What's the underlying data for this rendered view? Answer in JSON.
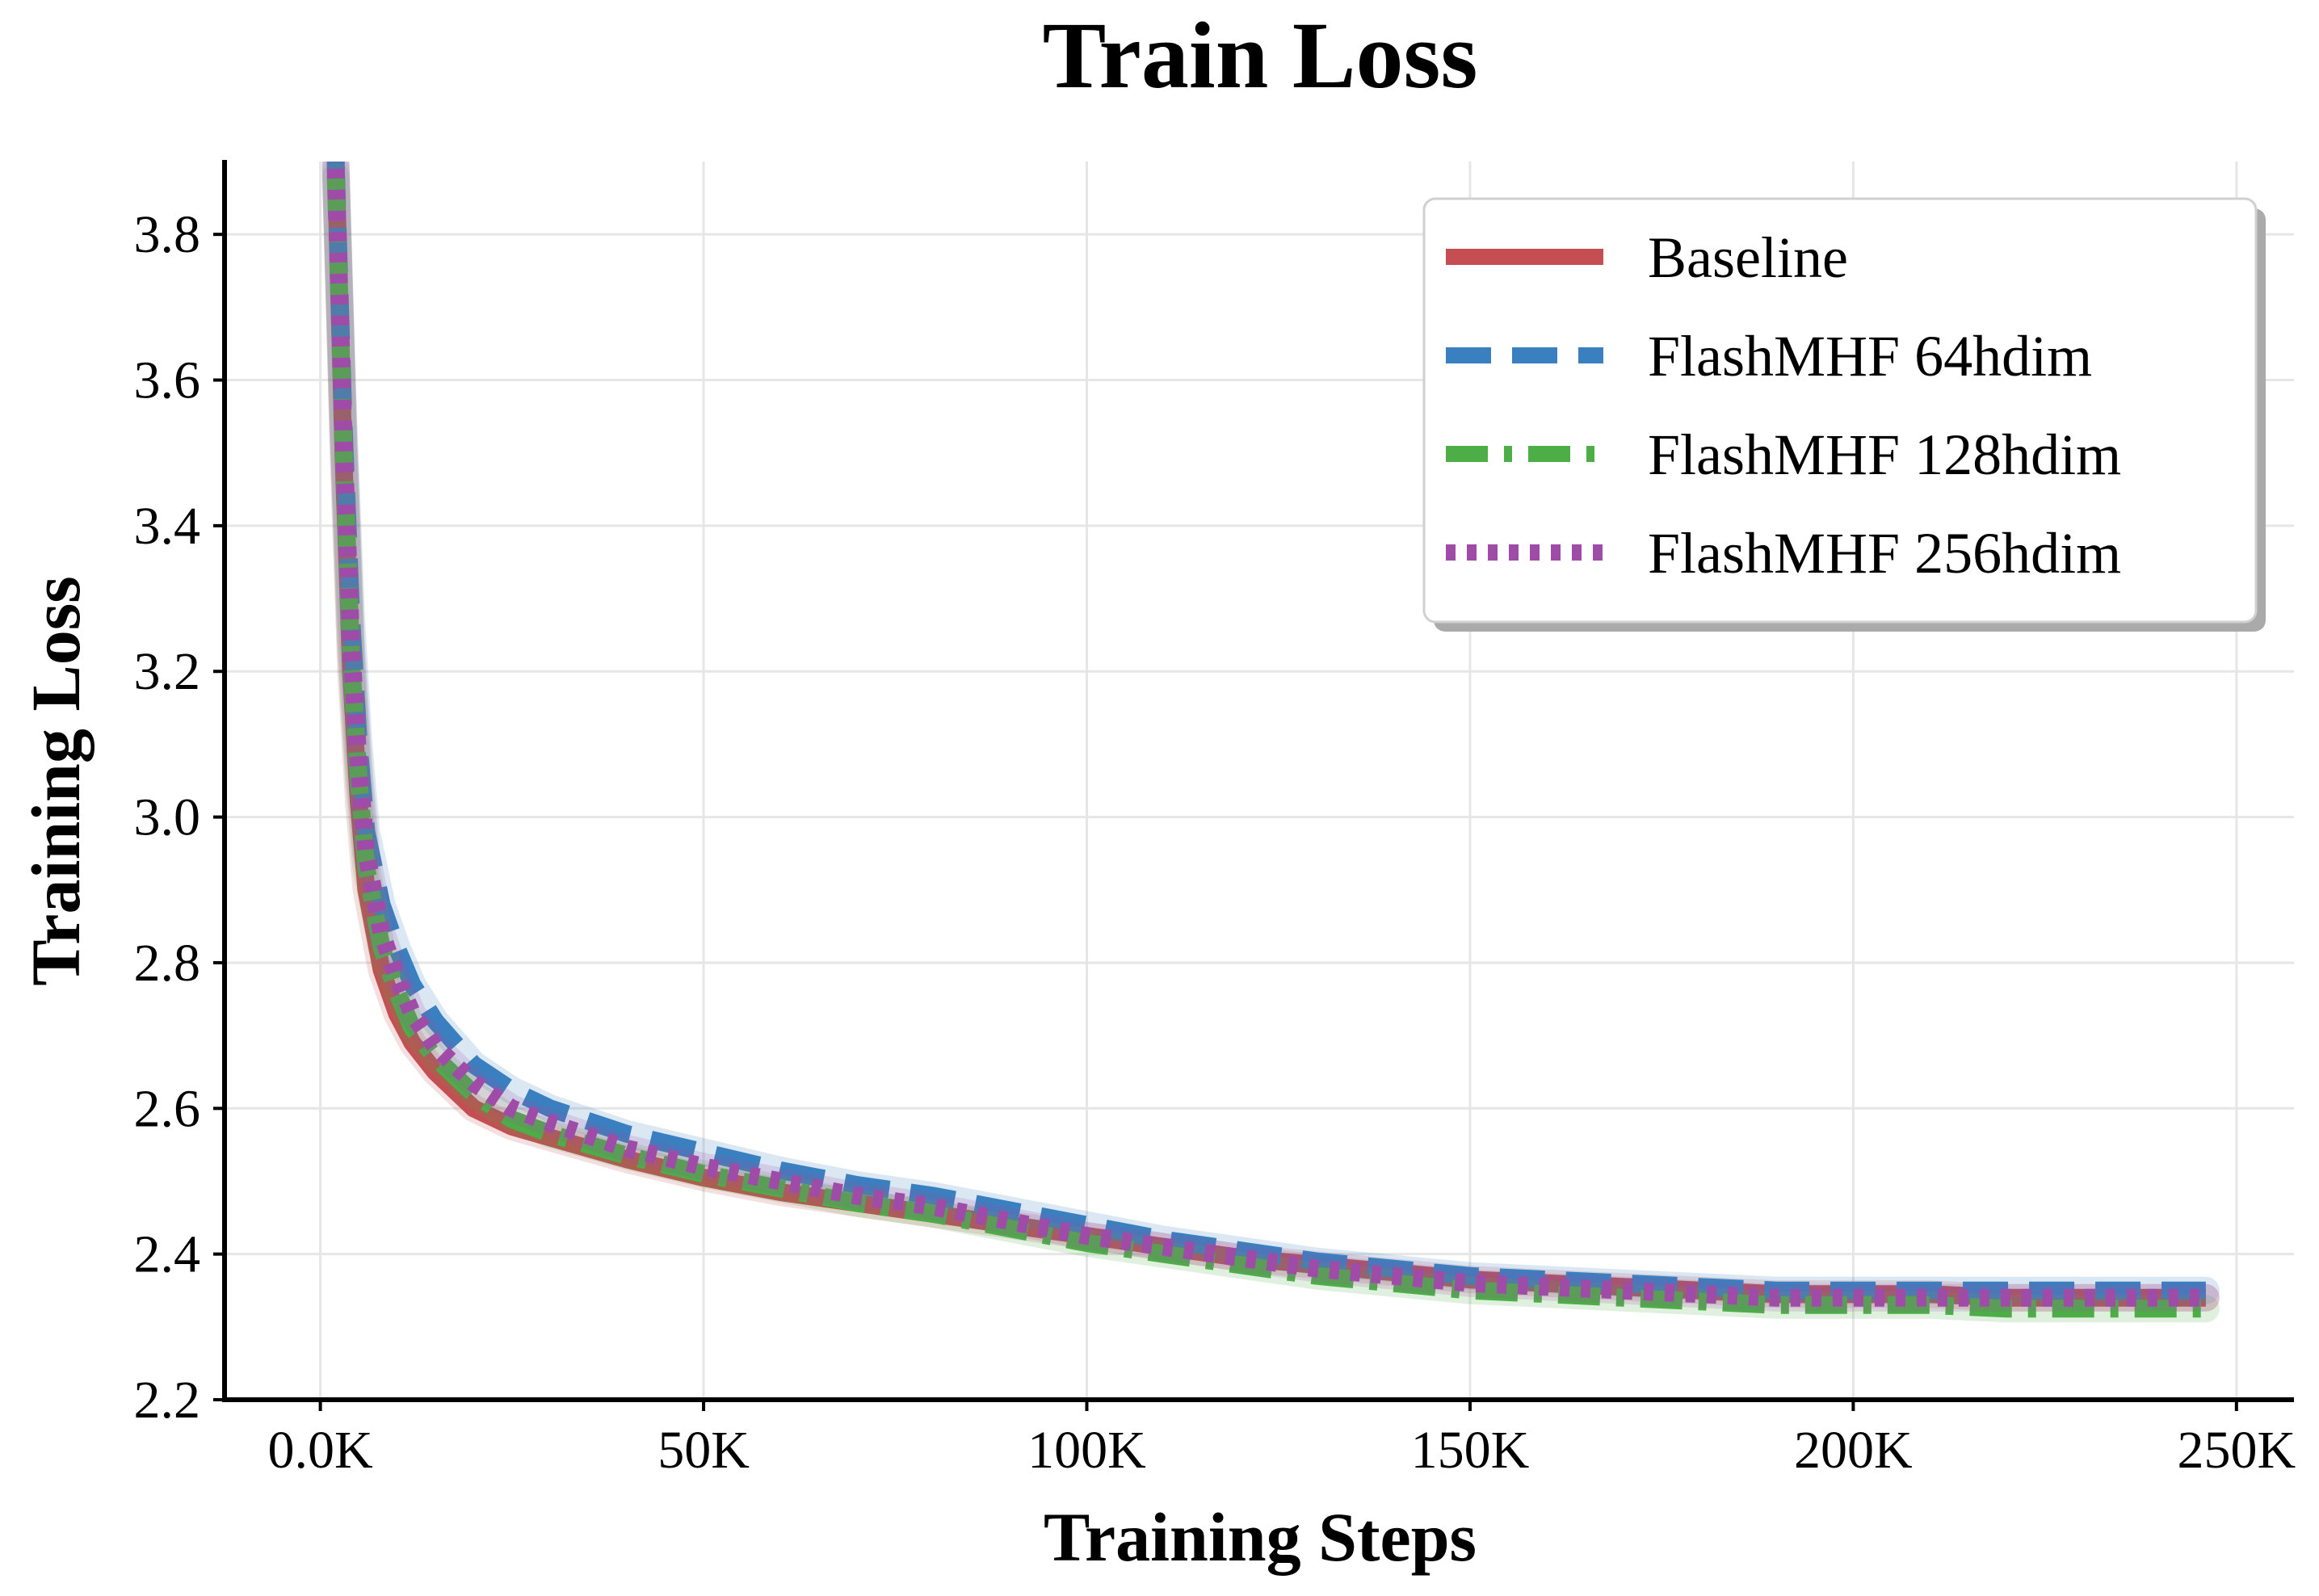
{
  "chart_data": {
    "type": "line",
    "title": "Train Loss",
    "xlabel": "Training Steps",
    "ylabel": "Training Loss",
    "xlim": [
      -12500,
      257500
    ],
    "ylim": [
      2.2,
      3.9
    ],
    "xticks": [
      0,
      50000,
      100000,
      150000,
      200000,
      250000
    ],
    "xtick_labels": [
      "0.0K",
      "50K",
      "100K",
      "150K",
      "200K",
      "250K"
    ],
    "yticks": [
      2.2,
      2.4,
      2.6,
      2.8,
      3.0,
      3.2,
      3.4,
      3.6,
      3.8
    ],
    "ytick_labels": [
      "2.2",
      "2.4",
      "2.6",
      "2.8",
      "3.0",
      "3.2",
      "3.4",
      "3.6",
      "3.8"
    ],
    "grid": true,
    "legend_position": "top-right",
    "series": [
      {
        "name": "Baseline",
        "color": "#c44e52",
        "dash": "solid",
        "x": [
          2000,
          3000,
          4000,
          5000,
          6000,
          8000,
          10000,
          12000,
          15000,
          20000,
          25000,
          30000,
          40000,
          50000,
          60000,
          70000,
          80000,
          90000,
          100000,
          110000,
          120000,
          130000,
          140000,
          150000,
          160000,
          170000,
          180000,
          190000,
          200000,
          210000,
          220000,
          230000,
          240000,
          246000
        ],
        "y": [
          3.9,
          3.5,
          3.2,
          3.02,
          2.9,
          2.79,
          2.73,
          2.69,
          2.65,
          2.6,
          2.575,
          2.56,
          2.53,
          2.505,
          2.485,
          2.47,
          2.455,
          2.44,
          2.425,
          2.41,
          2.395,
          2.385,
          2.375,
          2.365,
          2.36,
          2.355,
          2.35,
          2.345,
          2.345,
          2.345,
          2.34,
          2.34,
          2.34,
          2.34
        ]
      },
      {
        "name": "FlashMHF 64hdim",
        "color": "#3a7fbf",
        "dash": "dashed",
        "x": [
          2000,
          3000,
          4000,
          5000,
          6000,
          8000,
          10000,
          12000,
          15000,
          20000,
          25000,
          30000,
          40000,
          50000,
          60000,
          70000,
          80000,
          90000,
          100000,
          110000,
          120000,
          130000,
          140000,
          150000,
          160000,
          170000,
          180000,
          190000,
          200000,
          210000,
          220000,
          230000,
          240000,
          246000
        ],
        "y": [
          3.9,
          3.55,
          3.28,
          3.1,
          2.98,
          2.88,
          2.82,
          2.77,
          2.72,
          2.66,
          2.625,
          2.6,
          2.565,
          2.54,
          2.515,
          2.495,
          2.48,
          2.46,
          2.44,
          2.42,
          2.405,
          2.39,
          2.38,
          2.37,
          2.365,
          2.36,
          2.355,
          2.35,
          2.35,
          2.35,
          2.35,
          2.35,
          2.35,
          2.35
        ]
      },
      {
        "name": "FlashMHF 128hdim",
        "color": "#4dae48",
        "dash": "dashdot",
        "x": [
          2000,
          3000,
          4000,
          5000,
          6000,
          8000,
          10000,
          12000,
          15000,
          20000,
          25000,
          30000,
          40000,
          50000,
          60000,
          70000,
          80000,
          90000,
          100000,
          110000,
          120000,
          130000,
          140000,
          150000,
          160000,
          170000,
          180000,
          190000,
          200000,
          210000,
          220000,
          230000,
          240000,
          246000
        ],
        "y": [
          3.88,
          3.52,
          3.22,
          3.05,
          2.93,
          2.82,
          2.76,
          2.71,
          2.67,
          2.62,
          2.585,
          2.565,
          2.535,
          2.51,
          2.49,
          2.47,
          2.455,
          2.435,
          2.415,
          2.4,
          2.385,
          2.37,
          2.36,
          2.35,
          2.345,
          2.34,
          2.335,
          2.33,
          2.33,
          2.33,
          2.325,
          2.325,
          2.325,
          2.325
        ]
      },
      {
        "name": "FlashMHF 256hdim",
        "color": "#9e4ca8",
        "dash": "dotted",
        "x": [
          2000,
          3000,
          4000,
          5000,
          6000,
          8000,
          10000,
          12000,
          15000,
          20000,
          25000,
          30000,
          40000,
          50000,
          60000,
          70000,
          80000,
          90000,
          100000,
          110000,
          120000,
          130000,
          140000,
          150000,
          160000,
          170000,
          180000,
          190000,
          200000,
          210000,
          220000,
          230000,
          240000,
          246000
        ],
        "y": [
          3.89,
          3.53,
          3.24,
          3.07,
          2.95,
          2.84,
          2.78,
          2.73,
          2.685,
          2.635,
          2.6,
          2.58,
          2.545,
          2.52,
          2.5,
          2.48,
          2.465,
          2.445,
          2.425,
          2.41,
          2.395,
          2.38,
          2.37,
          2.36,
          2.355,
          2.35,
          2.345,
          2.34,
          2.34,
          2.34,
          2.34,
          2.34,
          2.34,
          2.34
        ]
      }
    ]
  }
}
